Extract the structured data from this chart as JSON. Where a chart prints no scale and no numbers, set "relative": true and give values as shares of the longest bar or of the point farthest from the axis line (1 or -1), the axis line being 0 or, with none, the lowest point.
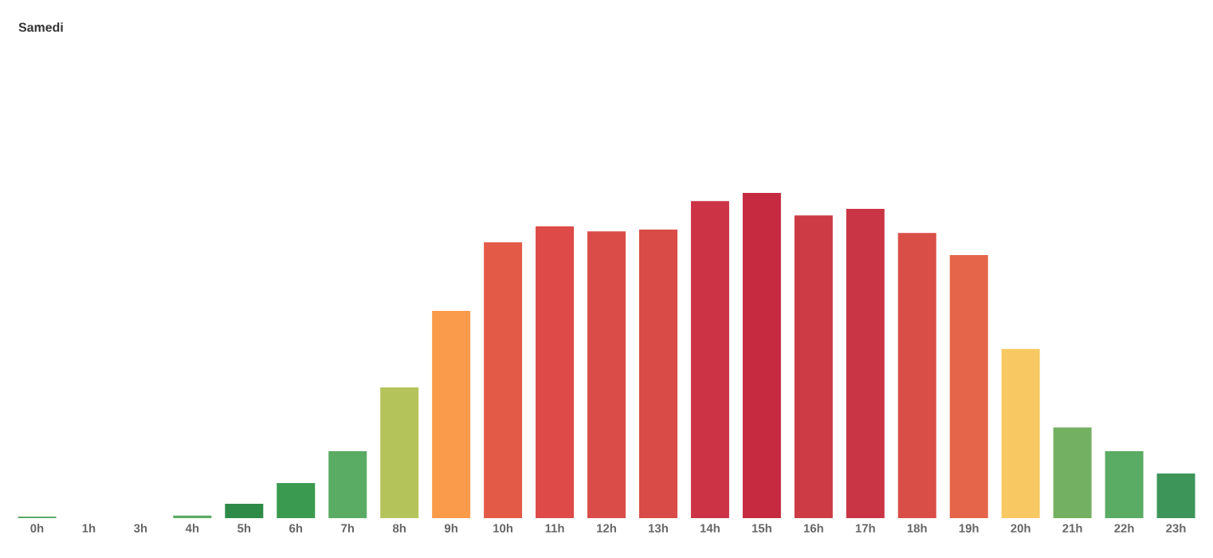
{
  "chart_data": {
    "type": "bar",
    "title": "Samedi",
    "relative": true,
    "categories": [
      "0h",
      "1h",
      "3h",
      "4h",
      "5h",
      "6h",
      "7h",
      "8h",
      "9h",
      "10h",
      "11h",
      "12h",
      "13h",
      "14h",
      "15h",
      "16h",
      "17h",
      "18h",
      "19h",
      "20h",
      "21h",
      "22h",
      "23h"
    ],
    "values": [
      0.005,
      0,
      0,
      0.008,
      0.044,
      0.108,
      0.206,
      0.402,
      0.637,
      0.848,
      0.897,
      0.882,
      0.887,
      0.975,
      1,
      0.931,
      0.951,
      0.877,
      0.809,
      0.52,
      0.279,
      0.206,
      0.137
    ],
    "colors": [
      "#5aab63",
      "#2e8b47",
      "#2e8b47",
      "#5aab63",
      "#2e8b47",
      "#3a9a50",
      "#5aab63",
      "#b5c45a",
      "#f99b4a",
      "#e35b47",
      "#dd4a48",
      "#da4c48",
      "#d94b46",
      "#cc3446",
      "#c52a40",
      "#cd3b45",
      "#ca3545",
      "#da4e48",
      "#e5654a",
      "#f8c962",
      "#74b062",
      "#5aab63",
      "#3d955a"
    ]
  }
}
